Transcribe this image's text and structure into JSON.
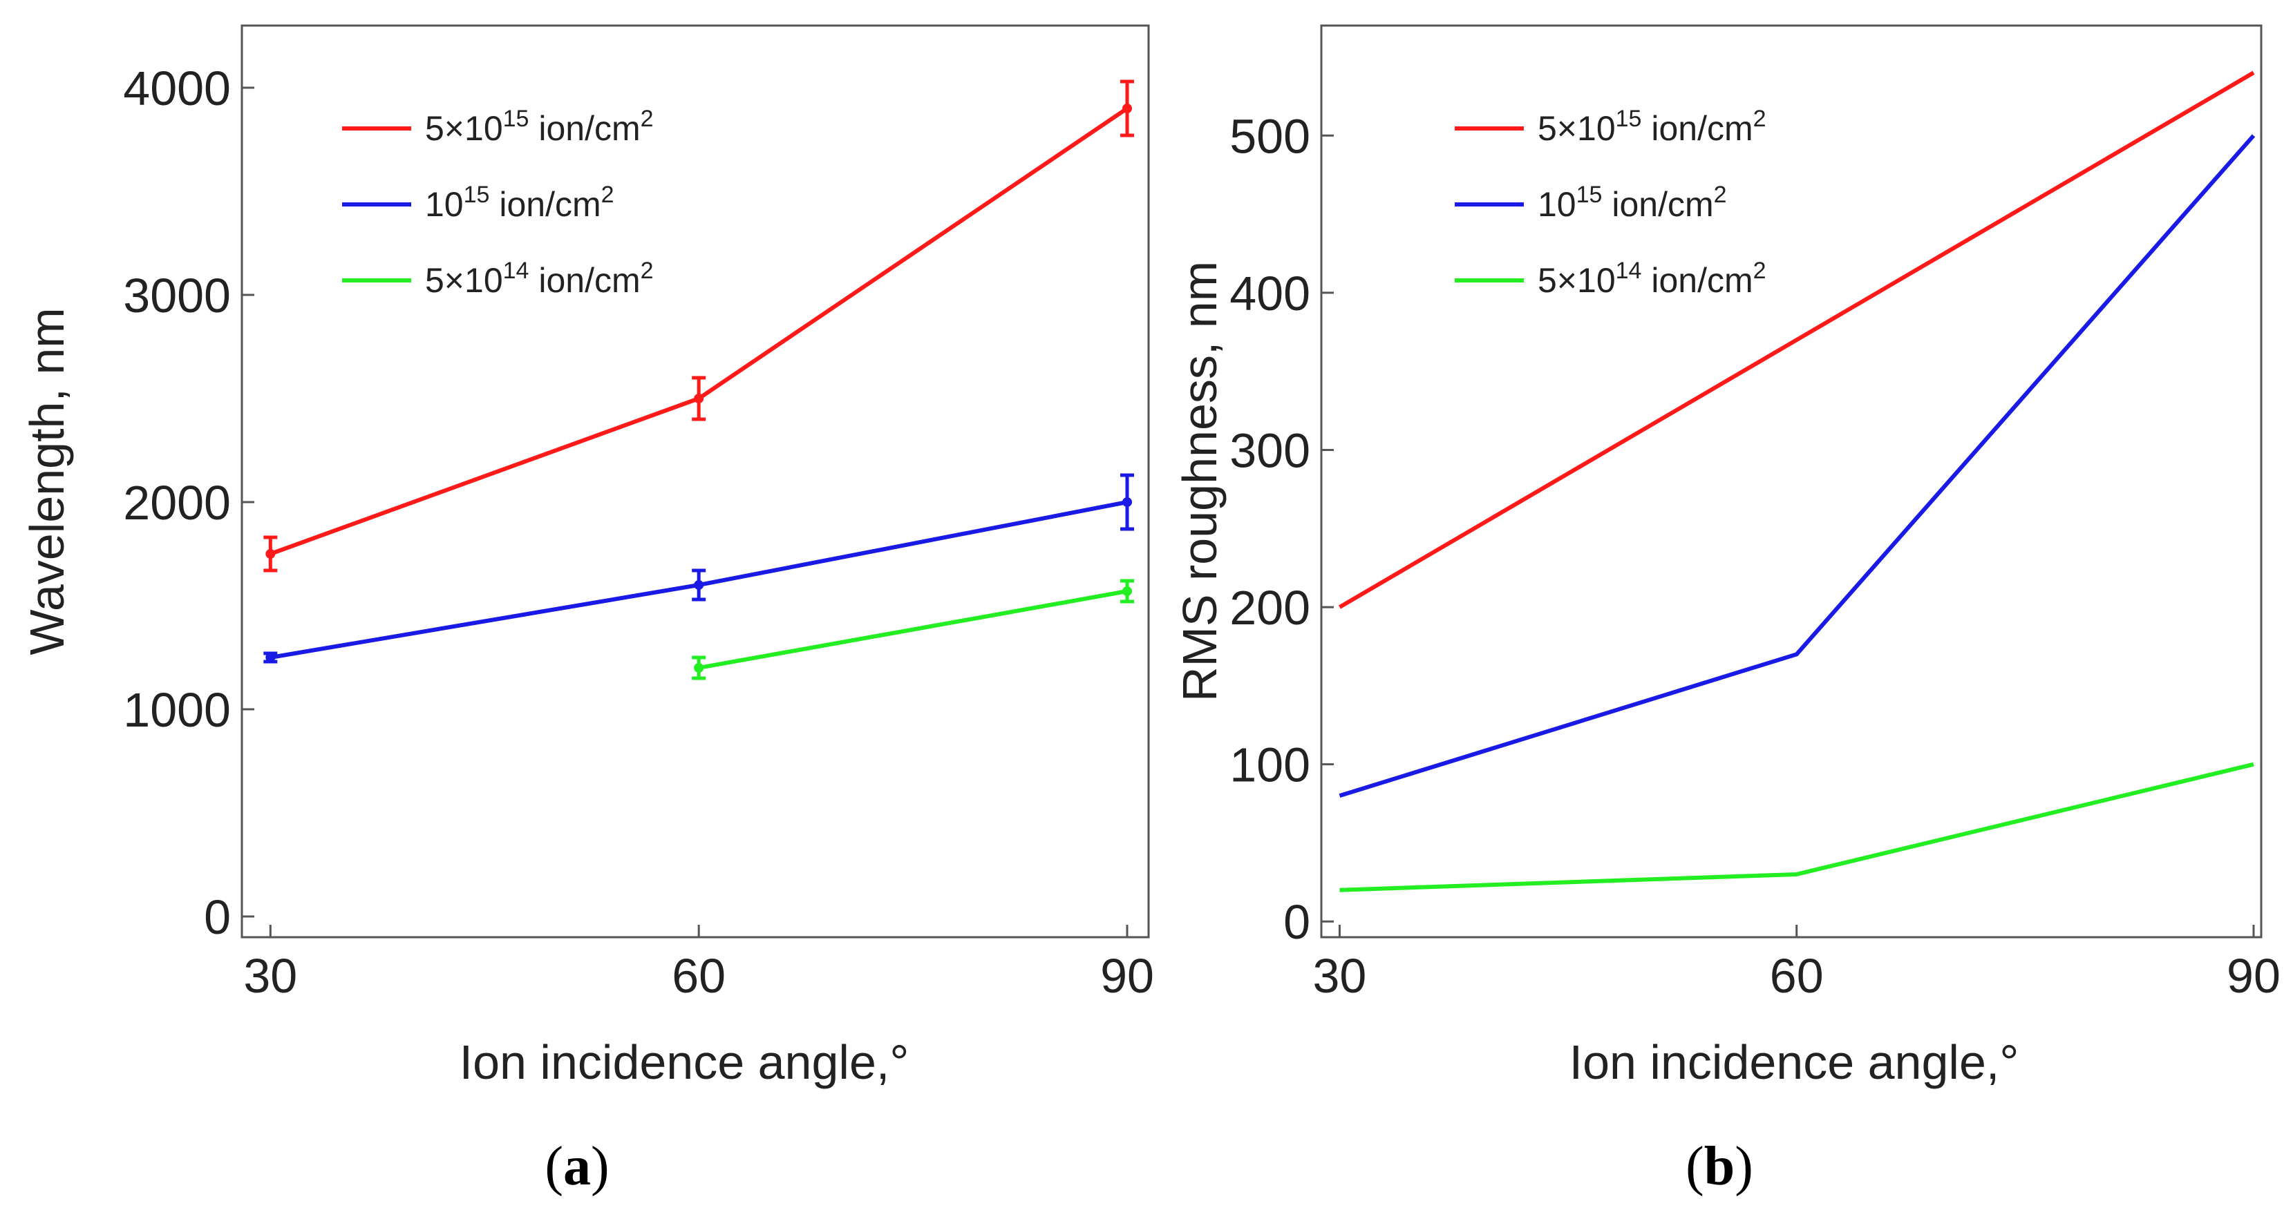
{
  "chart_data": [
    {
      "type": "line",
      "panel_label": "(a)",
      "panel_label_parts": [
        "(",
        "a",
        ")"
      ],
      "xlabel": "Ion incidence angle,°",
      "ylabel": "Wavelength, nm",
      "xlim": [
        28,
        91.5
      ],
      "ylim": [
        -100,
        4300
      ],
      "xticks": [
        30,
        60,
        90
      ],
      "yticks": [
        0,
        1000,
        2000,
        3000,
        4000
      ],
      "legend_position": "top-left",
      "series": [
        {
          "name": "5×10^15 ion/cm^2",
          "legend_base": "5×10",
          "legend_exp": "15",
          "legend_unit": " ion/cm",
          "legend_unit_exp": "2",
          "color": "#ff1a1a",
          "x": [
            30,
            60,
            90
          ],
          "values": [
            1750,
            2500,
            3900
          ],
          "errors": [
            80,
            100,
            130
          ]
        },
        {
          "name": "10^15 ion/cm^2",
          "legend_base": "10",
          "legend_exp": "15",
          "legend_unit": " ion/cm",
          "legend_unit_exp": "2",
          "color": "#1a1ae6",
          "x": [
            30,
            60,
            90
          ],
          "values": [
            1250,
            1600,
            2000
          ],
          "errors": [
            20,
            70,
            130
          ]
        },
        {
          "name": "5×10^14 ion/cm^2",
          "legend_base": "5×10",
          "legend_exp": "14",
          "legend_unit": " ion/cm",
          "legend_unit_exp": "2",
          "color": "#22ee22",
          "x": [
            60,
            90
          ],
          "values": [
            1200,
            1570
          ],
          "errors": [
            50,
            50
          ]
        }
      ]
    },
    {
      "type": "line",
      "panel_label": "(b)",
      "panel_label_parts": [
        "(",
        "b",
        ")"
      ],
      "xlabel": "Ion incidence angle,°",
      "ylabel": "RMS roughness, nm",
      "xlim": [
        28.8,
        90.5
      ],
      "ylim": [
        -10,
        570
      ],
      "xticks": [
        30,
        60,
        90
      ],
      "yticks": [
        0,
        100,
        200,
        300,
        400,
        500
      ],
      "legend_position": "top-left",
      "series": [
        {
          "name": "5×10^15 ion/cm^2",
          "legend_base": "5×10",
          "legend_exp": "15",
          "legend_unit": " ion/cm",
          "legend_unit_exp": "2",
          "color": "#ff1a1a",
          "x": [
            30,
            60,
            90
          ],
          "values": [
            200,
            370,
            540
          ]
        },
        {
          "name": "10^15 ion/cm^2",
          "legend_base": "10",
          "legend_exp": "15",
          "legend_unit": " ion/cm",
          "legend_unit_exp": "2",
          "color": "#1a1ae6",
          "x": [
            30,
            60,
            90
          ],
          "values": [
            80,
            170,
            500
          ]
        },
        {
          "name": "5×10^14 ion/cm^2",
          "legend_base": "5×10",
          "legend_exp": "14",
          "legend_unit": " ion/cm",
          "legend_unit_exp": "2",
          "color": "#22ee22",
          "x": [
            30,
            60,
            90
          ],
          "values": [
            20,
            30,
            100
          ]
        }
      ]
    }
  ]
}
